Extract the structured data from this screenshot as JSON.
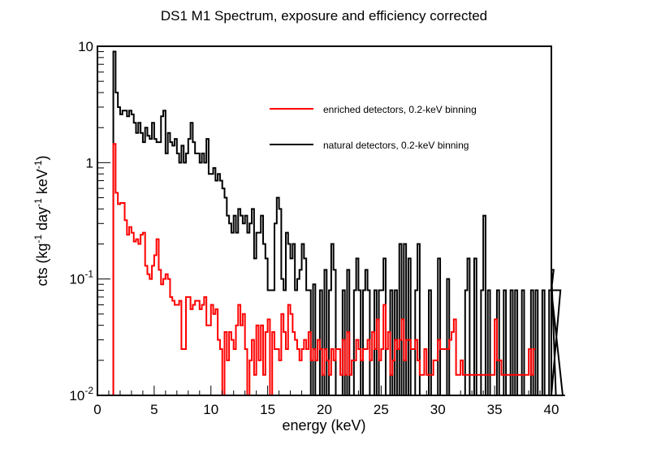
{
  "chart_data": {
    "type": "line",
    "title": "DS1 M1 Spectrum, exposure and efficiency corrected",
    "xlabel": "energy (keV)",
    "ylabel": {
      "base": "cts (kg",
      "sup1": "-1",
      "mid": " day",
      "sup2": "-1",
      "mid2": " keV",
      "sup3": "-1",
      "end": ")"
    },
    "xlim": [
      0,
      40
    ],
    "ylim": [
      0.01,
      10
    ],
    "yscale": "log",
    "x_ticks": [
      0,
      5,
      10,
      15,
      20,
      25,
      30,
      35,
      40
    ],
    "x_tick_labels": [
      "0",
      "5",
      "10",
      "15",
      "20",
      "25",
      "30",
      "35",
      "40"
    ],
    "y_ticks": [
      {
        "value": 0.01,
        "base": "10",
        "sup": "-2"
      },
      {
        "value": 0.1,
        "base": "10",
        "sup": "-1"
      },
      {
        "value": 1,
        "base": "1",
        "sup": ""
      },
      {
        "value": 10,
        "base": "10",
        "sup": ""
      }
    ],
    "bin_width": 0.2,
    "x_start": 1.4,
    "legend_position": "top-right",
    "series": [
      {
        "name": "enriched detectors, 0.2-keV binning",
        "color": "#ff0000",
        "values": [
          1.45,
          0.55,
          0.44,
          0.45,
          0.45,
          0.32,
          0.24,
          0.28,
          0.25,
          0.21,
          0.22,
          0.2,
          0.24,
          0.25,
          0.13,
          0.11,
          0.1,
          0.13,
          0.16,
          0.22,
          0.12,
          0.09,
          0.1,
          0.11,
          0.1,
          0.07,
          0.065,
          0.06,
          0.06,
          0.065,
          0.025,
          0.025,
          0.07,
          0.07,
          0.055,
          0.06,
          0.065,
          0.065,
          0.055,
          0.06,
          0.07,
          0.04,
          0.04,
          0.06,
          0.05,
          0.055,
          0.03,
          0.025,
          0.01,
          0.035,
          0.02,
          0.035,
          0.03,
          0.025,
          0.04,
          0.06,
          0.04,
          0.05,
          0.025,
          0.01,
          0.02,
          0.03,
          0.015,
          0.04,
          0.02,
          0.04,
          0.015,
          0.035,
          0.045,
          0.01,
          0.035,
          0.025,
          0.025,
          0.02,
          0.05,
          0.035,
          0.025,
          0.06,
          0.05,
          0.035,
          0.03,
          0.025,
          0.02,
          0.025,
          0.03,
          0.025,
          0.035,
          0.02,
          0.025,
          0.02,
          0.03,
          0.025,
          0.015,
          0.025,
          0.02,
          0.015,
          0.025,
          0.02,
          0.025,
          0.025,
          0.015,
          0.03,
          0.015,
          0.035,
          0.015,
          0.02,
          0.02,
          0.03,
          0.025,
          0.02,
          0.025,
          0.025,
          0.03,
          0.02,
          0.035,
          0.025,
          0.045,
          0.02,
          0.025,
          0.06,
          0.025,
          0.035,
          0.015,
          0.02,
          0.03,
          0.025,
          0.03,
          0.045,
          0.02,
          0.03,
          0.03,
          0.025,
          0.025,
          0.03,
          0.02,
          0.015,
          0.015,
          0.025,
          0.015,
          0.015,
          0.015,
          0.02,
          0.02,
          0.03,
          0.025,
          0.025,
          0.025,
          0.025,
          0.03,
          0.035,
          0.045,
          0.015,
          0.015,
          0.02,
          0.015,
          0.015,
          0.015,
          0.015,
          0.015,
          0.015,
          0.015,
          0.015,
          0.015,
          0.015,
          0.015,
          0.015,
          0.015,
          0.015,
          0.045,
          0.02,
          0.02,
          0.015,
          0.015,
          0.015,
          0.015,
          0.015,
          0.015,
          0.015,
          0.015,
          0.015,
          0.015,
          0.015,
          0.015,
          0.025,
          0.015,
          0.025
        ]
      },
      {
        "name": "natural detectors, 0.2-keV binning",
        "color": "#000000",
        "values": [
          9.0,
          4.0,
          3.0,
          2.6,
          2.8,
          2.8,
          2.5,
          2.8,
          2.6,
          2.2,
          1.8,
          2.2,
          1.8,
          1.5,
          2.0,
          1.7,
          1.6,
          2.2,
          1.6,
          1.5,
          1.5,
          2.5,
          2.8,
          1.2,
          1.8,
          1.5,
          1.4,
          1.6,
          1.2,
          1.0,
          1.4,
          1.0,
          1.2,
          1.6,
          2.2,
          1.5,
          1.2,
          1.2,
          1.0,
          1.2,
          1.0,
          1.6,
          0.8,
          0.8,
          0.9,
          0.7,
          0.8,
          0.7,
          0.6,
          0.5,
          0.35,
          0.3,
          0.25,
          0.35,
          0.25,
          0.4,
          0.35,
          0.3,
          0.35,
          0.25,
          0.3,
          0.4,
          0.15,
          0.25,
          0.25,
          0.35,
          0.2,
          0.15,
          0.08,
          0.08,
          0.08,
          0.3,
          0.5,
          0.4,
          0.1,
          0.08,
          0.25,
          0.2,
          0.15,
          0.2,
          0.08,
          0.1,
          0.12,
          0.2,
          0.15,
          0.08,
          0.08,
          0.01,
          0.09,
          0.01,
          0.01,
          0.08,
          0.01,
          0.12,
          0.01,
          0.08,
          0.2,
          0.12,
          0.01,
          0.01,
          0.01,
          0.08,
          0.01,
          0.12,
          0.01,
          0.01,
          0.08,
          0.15,
          0.08,
          0.01,
          0.08,
          0.12,
          0.08,
          0.01,
          0.01,
          0.08,
          0.01,
          0.08,
          0.08,
          0.15,
          0.01,
          0.01,
          0.08,
          0.01,
          0.08,
          0.01,
          0.2,
          0.01,
          0.2,
          0.01,
          0.15,
          0.01,
          0.01,
          0.08,
          0.2,
          0.01,
          0.01,
          0.01,
          0.01,
          0.08,
          0.01,
          0.01,
          0.01,
          0.15,
          0.01,
          0.01,
          0.01,
          0.1,
          0.01,
          0.01,
          0.01,
          0.01,
          0.01,
          0.01,
          0.01,
          0.08,
          0.15,
          0.01,
          0.01,
          0.15,
          0.01,
          0.01,
          0.08,
          0.35,
          0.01,
          0.08,
          0.01,
          0.01,
          0.01,
          0.08,
          0.01,
          0.01,
          0.08,
          0.01,
          0.01,
          0.08,
          0.01,
          0.08,
          0.01,
          0.01,
          0.08,
          0.01,
          0.01,
          0.01,
          0.08,
          0.01,
          0.08,
          0.01,
          0.01,
          0.08,
          0.01,
          0.01,
          0.08,
          0.08,
          0.12,
          0.01,
          0.01,
          0.08,
          0.01,
          0.01
        ]
      }
    ]
  }
}
